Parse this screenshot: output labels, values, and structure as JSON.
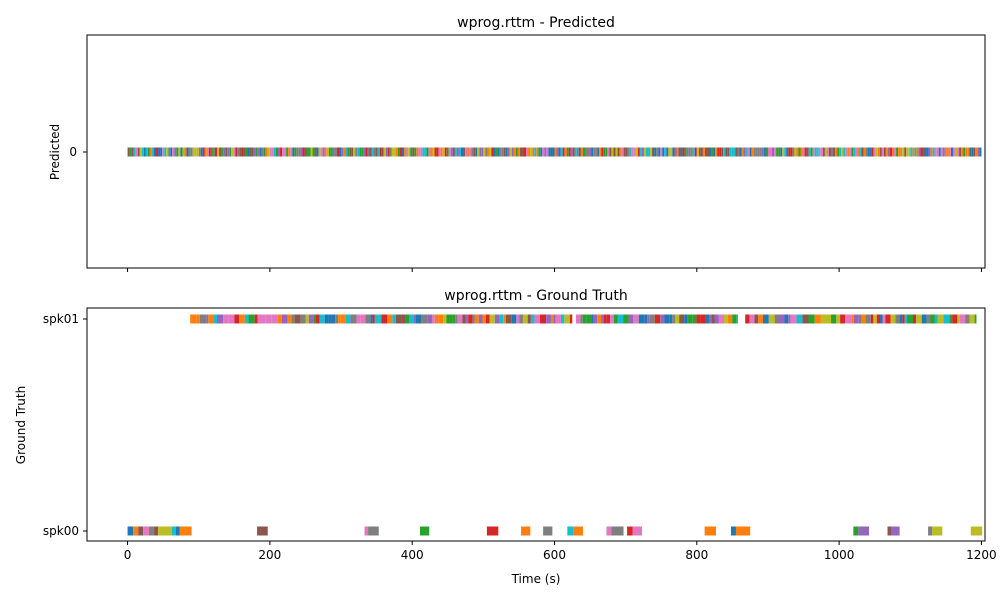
{
  "palette": [
    "#1f77b4",
    "#ff7f0e",
    "#2ca02c",
    "#d62728",
    "#9467bd",
    "#8c564b",
    "#e377c2",
    "#7f7f7f",
    "#bcbd22",
    "#17becf"
  ],
  "chart_data": [
    {
      "type": "timeline",
      "title": "wprog.rttm - Predicted",
      "ylabel": "Predicted",
      "xlim": [
        -57,
        1205
      ],
      "x_ticks": [
        0,
        200,
        400,
        600,
        800,
        1000,
        1200
      ],
      "x_tick_labels_shown": false,
      "y_categories": [
        "0"
      ],
      "segments": {
        "0": {
          "dense_span": [
            0,
            1200
          ],
          "segment_count": 420,
          "approx_segment_length_s": 2.86,
          "colors_cycle": "palette"
        }
      }
    },
    {
      "type": "timeline",
      "title": "wprog.rttm - Ground Truth",
      "ylabel": "Ground Truth",
      "xlabel": "Time (s)",
      "xlim": [
        -57,
        1205
      ],
      "x_ticks": [
        0,
        200,
        400,
        600,
        800,
        1000,
        1200
      ],
      "x_tick_labels": [
        "0",
        "200",
        "400",
        "600",
        "800",
        "1000",
        "1200"
      ],
      "y_categories": [
        "spk00",
        "spk01"
      ],
      "segments": {
        "spk01": [
          {
            "spans": [
              [
                88,
                625
              ],
              [
                630,
                858
              ],
              [
                868,
                1193
              ]
            ],
            "segment_length_s": 6
          }
        ],
        "spk00": [
          {
            "start": 0,
            "end": 8,
            "color": "#1f77b4"
          },
          {
            "start": 8,
            "end": 15,
            "color": "#ff7f0e"
          },
          {
            "start": 15,
            "end": 22,
            "color": "#8c564b"
          },
          {
            "start": 22,
            "end": 30,
            "color": "#e377c2"
          },
          {
            "start": 30,
            "end": 37,
            "color": "#7f7f7f"
          },
          {
            "start": 37,
            "end": 43,
            "color": "#8c564b"
          },
          {
            "start": 43,
            "end": 62,
            "color": "#bcbd22"
          },
          {
            "start": 62,
            "end": 68,
            "color": "#17becf"
          },
          {
            "start": 68,
            "end": 73,
            "color": "#1f77b4"
          },
          {
            "start": 73,
            "end": 90,
            "color": "#ff7f0e"
          },
          {
            "start": 182,
            "end": 197,
            "color": "#8c564b"
          },
          {
            "start": 333,
            "end": 338,
            "color": "#e377c2"
          },
          {
            "start": 338,
            "end": 353,
            "color": "#7f7f7f"
          },
          {
            "start": 411,
            "end": 424,
            "color": "#2ca02c"
          },
          {
            "start": 505,
            "end": 521,
            "color": "#d62728"
          },
          {
            "start": 553,
            "end": 566,
            "color": "#ff7f0e"
          },
          {
            "start": 584,
            "end": 597,
            "color": "#7f7f7f"
          },
          {
            "start": 618,
            "end": 627,
            "color": "#17becf"
          },
          {
            "start": 627,
            "end": 640,
            "color": "#ff7f0e"
          },
          {
            "start": 673,
            "end": 680,
            "color": "#e377c2"
          },
          {
            "start": 680,
            "end": 697,
            "color": "#7f7f7f"
          },
          {
            "start": 702,
            "end": 710,
            "color": "#d62728"
          },
          {
            "start": 710,
            "end": 723,
            "color": "#e377c2"
          },
          {
            "start": 811,
            "end": 827,
            "color": "#ff7f0e"
          },
          {
            "start": 848,
            "end": 855,
            "color": "#1f77b4"
          },
          {
            "start": 855,
            "end": 875,
            "color": "#ff7f0e"
          },
          {
            "start": 1020,
            "end": 1027,
            "color": "#2ca02c"
          },
          {
            "start": 1027,
            "end": 1042,
            "color": "#9467bd"
          },
          {
            "start": 1068,
            "end": 1074,
            "color": "#8c564b"
          },
          {
            "start": 1074,
            "end": 1085,
            "color": "#9467bd"
          },
          {
            "start": 1125,
            "end": 1131,
            "color": "#7f7f7f"
          },
          {
            "start": 1131,
            "end": 1145,
            "color": "#bcbd22"
          },
          {
            "start": 1185,
            "end": 1201,
            "color": "#bcbd22"
          }
        ]
      }
    }
  ]
}
